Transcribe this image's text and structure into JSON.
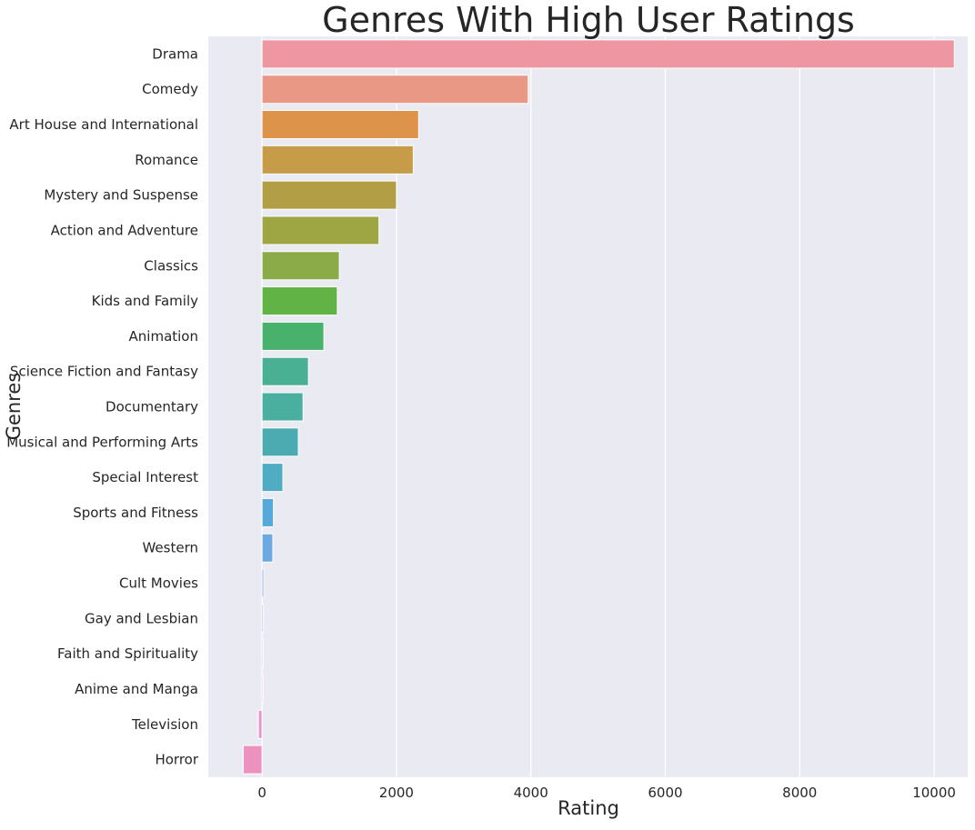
{
  "chart_data": {
    "type": "bar",
    "orientation": "horizontal",
    "title": "Genres With High User Ratings",
    "xlabel": "Rating",
    "ylabel": "Genres",
    "xlim": [
      -800,
      10500
    ],
    "xticks": [
      0,
      2000,
      4000,
      6000,
      8000,
      10000
    ],
    "grid": true,
    "categories": [
      "Drama",
      "Comedy",
      "Art House and International",
      "Romance",
      "Mystery and Suspense",
      "Action and Adventure",
      "Classics",
      "Kids and Family",
      "Animation",
      "Science Fiction and Fantasy",
      "Documentary",
      "Musical and Performing Arts",
      "Special Interest",
      "Sports and Fitness",
      "Western",
      "Cult Movies",
      "Gay and Lesbian",
      "Faith and Spirituality",
      "Anime and Manga",
      "Television",
      "Horror"
    ],
    "values": [
      10300,
      3960,
      2330,
      2250,
      2000,
      1740,
      1150,
      1120,
      920,
      690,
      610,
      540,
      310,
      170,
      160,
      25,
      20,
      8,
      5,
      -55,
      -280
    ],
    "colors": [
      "#ee97a2",
      "#e99886",
      "#dd9349",
      "#c79c48",
      "#b29f45",
      "#9ea643",
      "#8aab47",
      "#62b346",
      "#48b26d",
      "#49b093",
      "#4aaf9f",
      "#4cabb0",
      "#4facc3",
      "#55a8d8",
      "#6ca9e1",
      "#8c9de6",
      "#b39bea",
      "#cf9be6",
      "#e29ad8",
      "#e797cb",
      "#ec92be"
    ],
    "background_color": "#eaeaf2"
  }
}
